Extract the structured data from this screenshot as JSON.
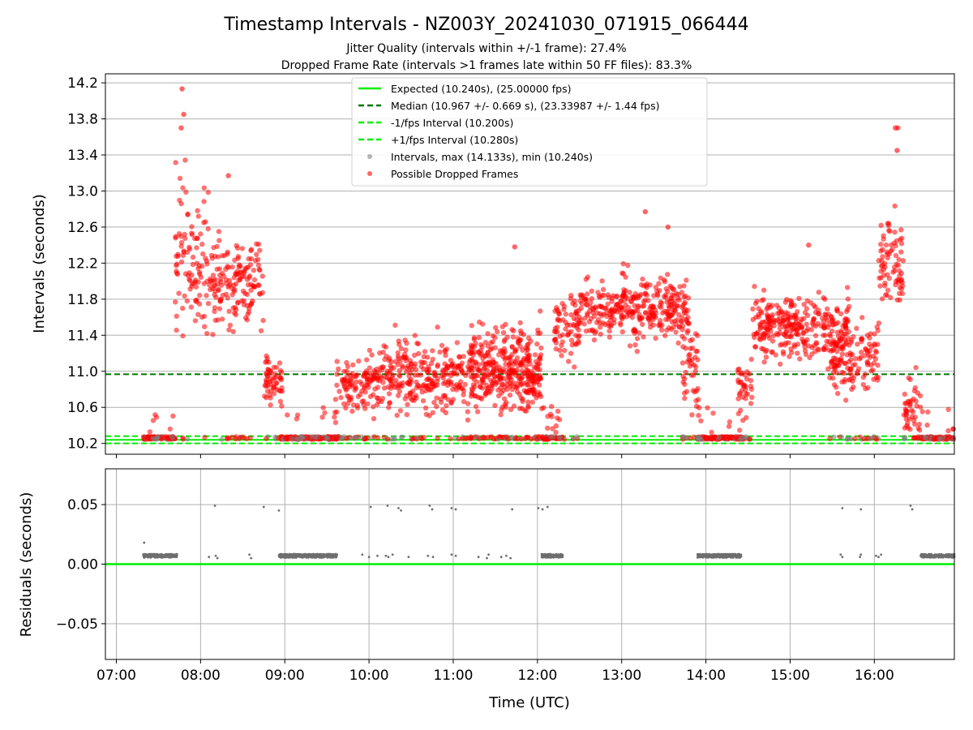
{
  "chart_data": [
    {
      "type": "scatter",
      "title": "Timestamp Intervals - NZ003Y_20241030_071915_066444",
      "subtitle_lines": [
        "Jitter Quality (intervals within +/-1 frame): 27.4%",
        "Dropped Frame Rate (intervals >1 frames late within 50 FF files): 83.3%"
      ],
      "ylabel": "Intervals (seconds)",
      "xlim_hours": [
        6.87,
        16.95
      ],
      "ylim": [
        10.08,
        14.3
      ],
      "yticks": [
        10.2,
        10.6,
        11.0,
        11.4,
        11.8,
        12.2,
        12.6,
        13.0,
        13.4,
        13.8,
        14.2
      ],
      "ytick_labels": [
        "10.2",
        "10.6",
        "11.0",
        "11.4",
        "11.8",
        "12.2",
        "12.6",
        "13.0",
        "13.4",
        "13.8",
        "14.2"
      ],
      "grid": "horizontal",
      "legend_position": "top-center",
      "reference_lines": [
        {
          "name": "Expected (10.240s), (25.00000 fps)",
          "y": 10.24,
          "color": "#00ee00",
          "style": "solid"
        },
        {
          "name": "Median (10.967 +/- 0.669 s), (23.33987 +/- 1.44 fps)",
          "y": 10.967,
          "color": "#007700",
          "style": "dashed"
        },
        {
          "name": "-1/fps Interval (10.200s)",
          "y": 10.2,
          "color": "#00ee00",
          "style": "dashed"
        },
        {
          "name": "+1/fps Interval (10.280s)",
          "y": 10.28,
          "color": "#00ee00",
          "style": "dashed"
        }
      ],
      "series": [
        {
          "name": "Intervals, max (14.133s), min (10.240s)",
          "color": "#808080",
          "marker": "circle"
        },
        {
          "name": "Possible Dropped Frames",
          "color": "#ff0000",
          "marker": "circle"
        }
      ],
      "clusters": [
        {
          "from": 7.32,
          "to": 7.7,
          "baseline_frac": 0.94,
          "center": 10.25,
          "spread": 0.02
        },
        {
          "from": 7.7,
          "to": 8.1,
          "baseline_frac": 0.05,
          "center": 12.3,
          "spread": 0.75
        },
        {
          "from": 8.1,
          "to": 8.75,
          "baseline_frac": 0.06,
          "center": 12.0,
          "spread": 0.45
        },
        {
          "from": 8.75,
          "to": 8.98,
          "baseline_frac": 0.15,
          "center": 10.9,
          "spread": 0.3
        },
        {
          "from": 8.95,
          "to": 9.65,
          "baseline_frac": 0.95,
          "center": 10.25,
          "spread": 0.02
        },
        {
          "from": 9.6,
          "to": 10.0,
          "baseline_frac": 0.2,
          "center": 10.85,
          "spread": 0.3
        },
        {
          "from": 10.0,
          "to": 12.05,
          "baseline_frac": 0.12,
          "center": 10.95,
          "spread": 0.38
        },
        {
          "from": 11.2,
          "to": 12.05,
          "baseline_frac": 0.12,
          "center": 11.1,
          "spread": 0.4
        },
        {
          "from": 12.05,
          "to": 12.3,
          "baseline_frac": 0.75,
          "center": 10.25,
          "spread": 0.02
        },
        {
          "from": 12.2,
          "to": 12.5,
          "baseline_frac": 0.05,
          "center": 11.5,
          "spread": 0.35
        },
        {
          "from": 12.5,
          "to": 13.8,
          "baseline_frac": 0.0,
          "center": 11.7,
          "spread": 0.33
        },
        {
          "from": 13.72,
          "to": 13.92,
          "baseline_frac": 0.1,
          "center": 11.0,
          "spread": 0.45
        },
        {
          "from": 13.9,
          "to": 14.45,
          "baseline_frac": 0.95,
          "center": 10.25,
          "spread": 0.02
        },
        {
          "from": 14.38,
          "to": 14.55,
          "baseline_frac": 0.2,
          "center": 10.8,
          "spread": 0.3
        },
        {
          "from": 14.55,
          "to": 15.7,
          "baseline_frac": 0.0,
          "center": 11.5,
          "spread": 0.32
        },
        {
          "from": 15.45,
          "to": 16.05,
          "baseline_frac": 0.12,
          "center": 11.15,
          "spread": 0.38
        },
        {
          "from": 16.05,
          "to": 16.35,
          "baseline_frac": 0.0,
          "center": 12.2,
          "spread": 0.5
        },
        {
          "from": 16.35,
          "to": 16.55,
          "baseline_frac": 0.2,
          "center": 10.6,
          "spread": 0.35
        },
        {
          "from": 16.55,
          "to": 16.95,
          "baseline_frac": 0.95,
          "center": 10.25,
          "spread": 0.02
        }
      ],
      "outliers": [
        {
          "x": 7.78,
          "y": 14.133
        },
        {
          "x": 7.8,
          "y": 13.85
        },
        {
          "x": 7.77,
          "y": 13.7
        },
        {
          "x": 16.25,
          "y": 13.7
        },
        {
          "x": 16.28,
          "y": 13.7
        },
        {
          "x": 16.27,
          "y": 13.45
        },
        {
          "x": 13.28,
          "y": 12.77
        },
        {
          "x": 13.55,
          "y": 12.6
        },
        {
          "x": 8.33,
          "y": 13.17
        },
        {
          "x": 11.73,
          "y": 12.38
        },
        {
          "x": 15.22,
          "y": 12.4
        }
      ]
    },
    {
      "type": "scatter",
      "xlabel": "Time (UTC)",
      "ylabel": "Residuals (seconds)",
      "xlim_hours": [
        6.87,
        16.95
      ],
      "ylim": [
        -0.08,
        0.08
      ],
      "yticks": [
        0.05,
        0.0,
        -0.05
      ],
      "ytick_labels": [
        "0.05",
        "0.00",
        "−0.05"
      ],
      "xtick_hours": [
        7,
        8,
        9,
        10,
        11,
        12,
        13,
        14,
        15,
        16
      ],
      "xtick_labels": [
        "07:00",
        "08:00",
        "09:00",
        "10:00",
        "11:00",
        "12:00",
        "13:00",
        "14:00",
        "15:00",
        "16:00"
      ],
      "grid": "both",
      "reference_line": {
        "y": 0.0,
        "color": "#00ee00"
      },
      "series_color": "#6e6e6e",
      "dense_bands": [
        {
          "from": 7.32,
          "to": 7.72,
          "value": 0.007
        },
        {
          "from": 8.93,
          "to": 9.62,
          "value": 0.007
        },
        {
          "from": 12.05,
          "to": 12.3,
          "value": 0.007
        },
        {
          "from": 13.9,
          "to": 14.42,
          "value": 0.007
        },
        {
          "from": 16.55,
          "to": 16.95,
          "value": 0.007
        }
      ],
      "sparse_points": [
        {
          "x": 7.33,
          "y": 0.018
        },
        {
          "x": 8.1,
          "y": 0.006
        },
        {
          "x": 8.18,
          "y": 0.007
        },
        {
          "x": 8.2,
          "y": 0.005
        },
        {
          "x": 8.58,
          "y": 0.008
        },
        {
          "x": 8.6,
          "y": 0.005
        },
        {
          "x": 9.92,
          "y": 0.008
        },
        {
          "x": 10.0,
          "y": 0.006
        },
        {
          "x": 10.1,
          "y": 0.007
        },
        {
          "x": 10.2,
          "y": 0.007
        },
        {
          "x": 10.23,
          "y": 0.006
        },
        {
          "x": 10.28,
          "y": 0.008
        },
        {
          "x": 10.47,
          "y": 0.006
        },
        {
          "x": 10.7,
          "y": 0.007
        },
        {
          "x": 10.76,
          "y": 0.006
        },
        {
          "x": 10.98,
          "y": 0.008
        },
        {
          "x": 11.03,
          "y": 0.007
        },
        {
          "x": 11.3,
          "y": 0.006
        },
        {
          "x": 11.4,
          "y": 0.005
        },
        {
          "x": 11.42,
          "y": 0.008
        },
        {
          "x": 11.57,
          "y": 0.006
        },
        {
          "x": 11.63,
          "y": 0.007
        },
        {
          "x": 11.68,
          "y": 0.005
        },
        {
          "x": 15.6,
          "y": 0.008
        },
        {
          "x": 15.62,
          "y": 0.006
        },
        {
          "x": 15.83,
          "y": 0.006
        },
        {
          "x": 15.84,
          "y": 0.008
        },
        {
          "x": 16.02,
          "y": 0.007
        },
        {
          "x": 16.05,
          "y": 0.006
        },
        {
          "x": 16.08,
          "y": 0.008
        },
        {
          "x": 8.17,
          "y": 0.049
        },
        {
          "x": 8.75,
          "y": 0.048
        },
        {
          "x": 8.93,
          "y": 0.045
        },
        {
          "x": 10.02,
          "y": 0.048
        },
        {
          "x": 10.22,
          "y": 0.049
        },
        {
          "x": 10.35,
          "y": 0.047
        },
        {
          "x": 10.38,
          "y": 0.045
        },
        {
          "x": 10.72,
          "y": 0.049
        },
        {
          "x": 10.75,
          "y": 0.046
        },
        {
          "x": 10.98,
          "y": 0.047
        },
        {
          "x": 11.03,
          "y": 0.046
        },
        {
          "x": 11.7,
          "y": 0.046
        },
        {
          "x": 12.01,
          "y": 0.047
        },
        {
          "x": 12.06,
          "y": 0.046
        },
        {
          "x": 12.12,
          "y": 0.048
        },
        {
          "x": 15.62,
          "y": 0.047
        },
        {
          "x": 15.84,
          "y": 0.046
        },
        {
          "x": 16.43,
          "y": 0.049
        },
        {
          "x": 16.45,
          "y": 0.046
        }
      ]
    }
  ]
}
